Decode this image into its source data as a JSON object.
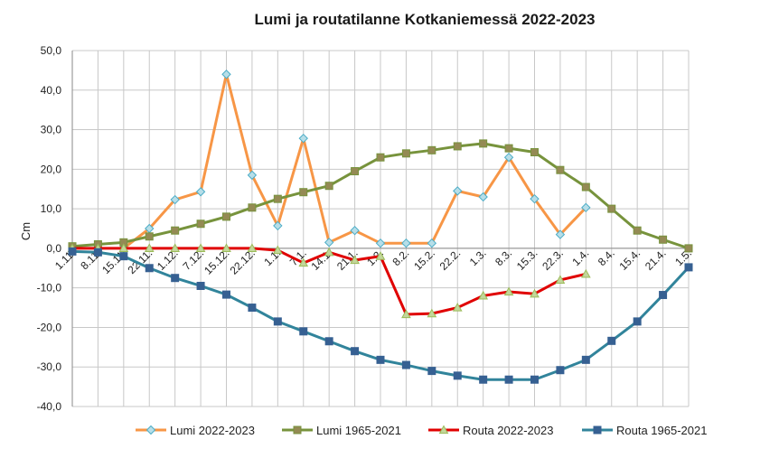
{
  "chart_data": {
    "type": "line",
    "title": "Lumi ja routatilanne Kotkaniemessä 2022-2023",
    "ylabel": "Cm",
    "xlabel": "",
    "ylim": [
      -40,
      50
    ],
    "yticks": [
      "50,0",
      "40,0",
      "30,0",
      "20,0",
      "10,0",
      "0,0",
      "-10,0",
      "-20,0",
      "-30,0",
      "-40,0"
    ],
    "ytick_values": [
      50,
      40,
      30,
      20,
      10,
      0,
      -10,
      -20,
      -30,
      -40
    ],
    "grid": true,
    "legend_position": "bottom",
    "categories": [
      "1.11.",
      "8.11.",
      "15.11.",
      "22.11.",
      "1.12.",
      "7.12.",
      "15.12.",
      "22.12.",
      "1.1.",
      "7.1.",
      "14.1.",
      "21.1.",
      "1.2.",
      "8.2.",
      "15.2.",
      "22.2.",
      "1.3.",
      "8.3.",
      "15.3.",
      "22.3.",
      "1.4.",
      "8.4.",
      "15.4.",
      "21.4.",
      "1.5."
    ],
    "series": [
      {
        "name": "Lumi 2022-2023",
        "color": "#f79646",
        "marker": "diamond",
        "marker_fill": "#b7dee8",
        "marker_stroke": "#4bacc6",
        "values": [
          null,
          null,
          0,
          5,
          12.3,
          14.3,
          44,
          18.5,
          5.7,
          27.8,
          1.5,
          4.5,
          1.3,
          1.3,
          1.3,
          14.5,
          13,
          23,
          12.5,
          3.5,
          10.3,
          null,
          null,
          null,
          null
        ]
      },
      {
        "name": "Lumi 1965-2021",
        "color": "#77933c",
        "marker": "square",
        "marker_fill": "#948a54",
        "marker_stroke": "#77933c",
        "values": [
          0.5,
          1,
          1.5,
          3,
          4.5,
          6.2,
          8,
          10.3,
          12.5,
          14.2,
          15.8,
          19.5,
          23,
          24,
          24.8,
          25.8,
          26.5,
          25.3,
          24.3,
          19.8,
          15.5,
          10,
          4.5,
          2.2,
          0
        ]
      },
      {
        "name": "Routa 2022-2023",
        "color": "#e00000",
        "marker": "triangle",
        "marker_fill": "#c3d69b",
        "marker_stroke": "#9bbb59",
        "values": [
          0,
          0,
          0,
          0,
          0,
          0,
          0,
          0,
          -0.5,
          -3.7,
          -1,
          -3,
          -2,
          -16.7,
          -16.5,
          -15,
          -12,
          -11,
          -11.5,
          -8,
          -6.5,
          null,
          null,
          null,
          null
        ]
      },
      {
        "name": "Routa 1965-2021",
        "color": "#31849b",
        "marker": "square",
        "marker_fill": "#366092",
        "marker_stroke": "#366092",
        "values": [
          -0.8,
          -1,
          -2,
          -5,
          -7.5,
          -9.5,
          -11.7,
          -15,
          -18.5,
          -21,
          -23.5,
          -26,
          -28.2,
          -29.5,
          -31,
          -32.2,
          -33.2,
          -33.2,
          -33.2,
          -30.8,
          -28.2,
          -23.4,
          -18.5,
          -11.8,
          -4.8
        ]
      }
    ]
  }
}
